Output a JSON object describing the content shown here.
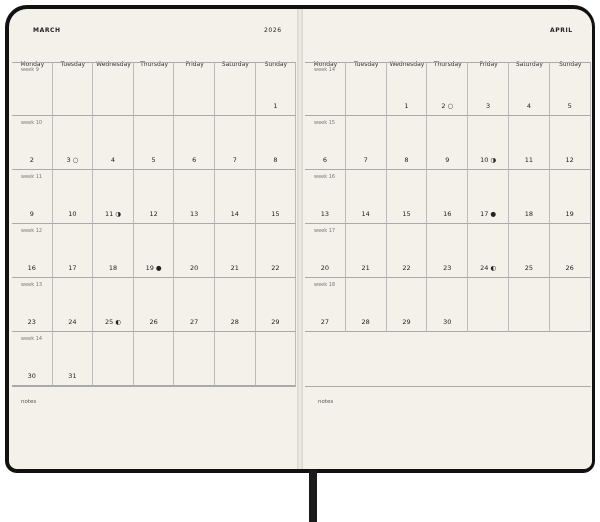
{
  "left": {
    "month": "MARCH",
    "year": "2026",
    "notes": "notes",
    "weeks": [
      {
        "label": "week 9",
        "days": [
          "",
          "",
          "",
          "",
          "",
          "",
          "1"
        ]
      },
      {
        "label": "week 10",
        "days": [
          "2",
          "3 ○",
          "4",
          "5",
          "6",
          "7",
          "8"
        ]
      },
      {
        "label": "week 11",
        "days": [
          "9",
          "10",
          "11 ◑",
          "12",
          "13",
          "14",
          "15"
        ]
      },
      {
        "label": "week 12",
        "days": [
          "16",
          "17",
          "18",
          "19 ●",
          "20",
          "21",
          "22"
        ]
      },
      {
        "label": "week 13",
        "days": [
          "23",
          "24",
          "25 ◐",
          "26",
          "27",
          "28",
          "29"
        ]
      },
      {
        "label": "week 14",
        "days": [
          "30",
          "31",
          "",
          "",
          "",
          "",
          ""
        ]
      }
    ]
  },
  "right": {
    "month": "APRIL",
    "notes": "notes",
    "weeks": [
      {
        "label": "week 14",
        "days": [
          "",
          "",
          "1",
          "2 ○",
          "3",
          "4",
          "5"
        ]
      },
      {
        "label": "week 15",
        "days": [
          "6",
          "7",
          "8",
          "9",
          "10 ◑",
          "11",
          "12"
        ]
      },
      {
        "label": "week 16",
        "days": [
          "13",
          "14",
          "15",
          "16",
          "17 ●",
          "18",
          "19"
        ]
      },
      {
        "label": "week 17",
        "days": [
          "20",
          "21",
          "22",
          "23",
          "24 ◐",
          "25",
          "26"
        ]
      },
      {
        "label": "week 18",
        "days": [
          "27",
          "28",
          "29",
          "30",
          "",
          "",
          ""
        ]
      }
    ]
  },
  "weekdays": [
    "Monday",
    "Tuesday",
    "Wednesday",
    "Thursday",
    "Friday",
    "Saturday",
    "Sunday"
  ]
}
